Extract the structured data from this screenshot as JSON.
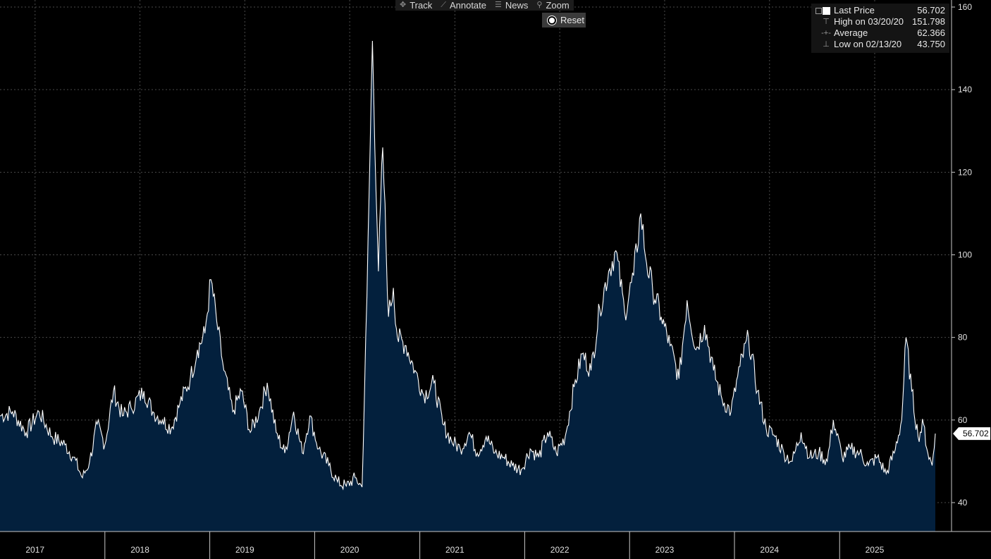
{
  "toolbar": {
    "items": [
      {
        "label": "Track",
        "icon": "crosshair-icon",
        "glyph": "✥"
      },
      {
        "label": "Annotate",
        "icon": "pencil-icon",
        "glyph": "⟋"
      },
      {
        "label": "News",
        "icon": "news-icon",
        "glyph": "☰"
      },
      {
        "label": "Zoom",
        "icon": "magnifier-icon",
        "glyph": "⚲"
      }
    ],
    "reset_label": "Reset"
  },
  "legend": {
    "last_price": {
      "label": "Last Price",
      "value": "56.702"
    },
    "high": {
      "label": "High on 03/20/20",
      "value": "151.798"
    },
    "average": {
      "label": "Average",
      "value": "62.366"
    },
    "low": {
      "label": "Low on 02/13/20",
      "value": "43.750"
    }
  },
  "price_tag": "56.702",
  "colors": {
    "area_fill": "#03203d",
    "line": "#ffffff",
    "grid": "#4a4a4a",
    "background": "#000000"
  },
  "chart_data": {
    "type": "area",
    "title": "",
    "xlabel": "",
    "ylabel": "",
    "ylim": [
      33,
      160
    ],
    "xlim": [
      "2016-09-01",
      "2025-07-31"
    ],
    "y_ticks": [
      40,
      60,
      80,
      100,
      120,
      140,
      160
    ],
    "x_ticks": [
      {
        "label": "2017",
        "date": "2017-01-01"
      },
      {
        "label": "2018",
        "date": "2018-01-01"
      },
      {
        "label": "2019",
        "date": "2019-01-01"
      },
      {
        "label": "2020",
        "date": "2020-01-01"
      },
      {
        "label": "2021",
        "date": "2021-01-01"
      },
      {
        "label": "2022",
        "date": "2022-01-01"
      },
      {
        "label": "2023",
        "date": "2023-01-01"
      },
      {
        "label": "2024",
        "date": "2024-01-01"
      },
      {
        "label": "2025",
        "date": "2025-01-01"
      }
    ],
    "year_separators": [
      "2017-09-01",
      "2018-09-01",
      "2019-09-01",
      "2020-09-01",
      "2021-09-01",
      "2022-09-01",
      "2023-09-01",
      "2024-09-01"
    ],
    "grid": true,
    "last_value": 56.702,
    "series": [
      {
        "points": [
          [
            "2016-09-01",
            61
          ],
          [
            "2016-10-15",
            62
          ],
          [
            "2016-12-01",
            57
          ],
          [
            "2017-01-15",
            62
          ],
          [
            "2017-03-01",
            56
          ],
          [
            "2017-04-15",
            54
          ],
          [
            "2017-05-15",
            51
          ],
          [
            "2017-06-15",
            46
          ],
          [
            "2017-07-10",
            50
          ],
          [
            "2017-08-05",
            59
          ],
          [
            "2017-09-01",
            54
          ],
          [
            "2017-10-01",
            67
          ],
          [
            "2017-11-01",
            61
          ],
          [
            "2017-12-01",
            63
          ],
          [
            "2018-01-15",
            67
          ],
          [
            "2018-02-15",
            62
          ],
          [
            "2018-03-20",
            60
          ],
          [
            "2018-04-20",
            58
          ],
          [
            "2018-05-20",
            64
          ],
          [
            "2018-06-25",
            70
          ],
          [
            "2018-07-20",
            77
          ],
          [
            "2018-08-15",
            81
          ],
          [
            "2018-09-05",
            94
          ],
          [
            "2018-09-25",
            84
          ],
          [
            "2018-10-20",
            72
          ],
          [
            "2018-11-20",
            62
          ],
          [
            "2018-12-20",
            67
          ],
          [
            "2019-01-20",
            57
          ],
          [
            "2019-02-20",
            62
          ],
          [
            "2019-03-20",
            69
          ],
          [
            "2019-04-20",
            57
          ],
          [
            "2019-05-20",
            52
          ],
          [
            "2019-06-20",
            62
          ],
          [
            "2019-07-20",
            52
          ],
          [
            "2019-08-15",
            61
          ],
          [
            "2019-09-15",
            53
          ],
          [
            "2019-10-20",
            49
          ],
          [
            "2019-11-20",
            45
          ],
          [
            "2019-12-20",
            44
          ],
          [
            "2020-01-20",
            46
          ],
          [
            "2020-02-13",
            43.75
          ],
          [
            "2020-03-01",
            90
          ],
          [
            "2020-03-20",
            151.8
          ],
          [
            "2020-04-10",
            96
          ],
          [
            "2020-04-25",
            126
          ],
          [
            "2020-05-15",
            85
          ],
          [
            "2020-06-01",
            92
          ],
          [
            "2020-06-15",
            80
          ],
          [
            "2020-07-15",
            78
          ],
          [
            "2020-08-15",
            72
          ],
          [
            "2020-09-15",
            66
          ],
          [
            "2020-10-20",
            69
          ],
          [
            "2020-11-20",
            59
          ],
          [
            "2020-12-20",
            55
          ],
          [
            "2021-01-20",
            53
          ],
          [
            "2021-02-20",
            57
          ],
          [
            "2021-03-20",
            52
          ],
          [
            "2021-04-20",
            56
          ],
          [
            "2021-05-20",
            52
          ],
          [
            "2021-06-20",
            51
          ],
          [
            "2021-07-20",
            49
          ],
          [
            "2021-08-20",
            48
          ],
          [
            "2021-09-20",
            53
          ],
          [
            "2021-10-20",
            51
          ],
          [
            "2021-11-20",
            57
          ],
          [
            "2021-12-20",
            52
          ],
          [
            "2022-01-20",
            56
          ],
          [
            "2022-02-20",
            68
          ],
          [
            "2022-03-20",
            76
          ],
          [
            "2022-04-20",
            72
          ],
          [
            "2022-05-20",
            87
          ],
          [
            "2022-06-20",
            96
          ],
          [
            "2022-07-15",
            101
          ],
          [
            "2022-08-15",
            86
          ],
          [
            "2022-09-15",
            95
          ],
          [
            "2022-10-10",
            110
          ],
          [
            "2022-10-30",
            98
          ],
          [
            "2022-11-20",
            92
          ],
          [
            "2022-12-20",
            85
          ],
          [
            "2023-01-20",
            78
          ],
          [
            "2023-02-20",
            70
          ],
          [
            "2023-03-20",
            89
          ],
          [
            "2023-04-20",
            77
          ],
          [
            "2023-05-20",
            83
          ],
          [
            "2023-06-20",
            72
          ],
          [
            "2023-07-20",
            65
          ],
          [
            "2023-08-20",
            62
          ],
          [
            "2023-09-20",
            73
          ],
          [
            "2023-10-20",
            80
          ],
          [
            "2023-11-20",
            67
          ],
          [
            "2023-12-20",
            58
          ],
          [
            "2024-01-20",
            56
          ],
          [
            "2024-02-20",
            52
          ],
          [
            "2024-03-20",
            50
          ],
          [
            "2024-04-20",
            57
          ],
          [
            "2024-05-20",
            51
          ],
          [
            "2024-06-20",
            52
          ],
          [
            "2024-07-20",
            50
          ],
          [
            "2024-08-10",
            60
          ],
          [
            "2024-09-10",
            51
          ],
          [
            "2024-10-10",
            53
          ],
          [
            "2024-11-10",
            52
          ],
          [
            "2024-12-10",
            49
          ],
          [
            "2025-01-10",
            51
          ],
          [
            "2025-02-10",
            47
          ],
          [
            "2025-03-10",
            52
          ],
          [
            "2025-04-05",
            60
          ],
          [
            "2025-04-20",
            80
          ],
          [
            "2025-05-10",
            67
          ],
          [
            "2025-06-01",
            56
          ],
          [
            "2025-06-20",
            59
          ],
          [
            "2025-07-05",
            52
          ],
          [
            "2025-07-20",
            49
          ],
          [
            "2025-07-31",
            56.702
          ]
        ]
      }
    ]
  }
}
